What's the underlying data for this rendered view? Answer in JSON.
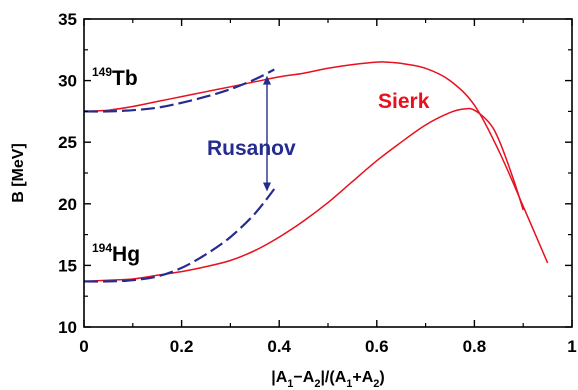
{
  "chart_data": {
    "type": "line",
    "xlabel": {
      "pre": "|A",
      "s1": "1",
      "mid1": "−A",
      "s2": "2",
      "mid2": "|/(A",
      "s3": "1",
      "mid3": "+A",
      "s4": "2",
      "post": ")"
    },
    "ylabel": "B [MeV]",
    "xlim": [
      0,
      1
    ],
    "ylim": [
      10,
      35
    ],
    "xticks": [
      "0",
      "0.2",
      "0.4",
      "0.6",
      "0.8",
      "1"
    ],
    "xtick_values": [
      0,
      0.2,
      0.4,
      0.6,
      0.8,
      1.0
    ],
    "yticks": [
      "10",
      "15",
      "20",
      "25",
      "30",
      "35"
    ],
    "ytick_values": [
      10,
      15,
      20,
      25,
      30,
      35
    ],
    "grid": false,
    "annotations": {
      "tb": {
        "mass": "149",
        "symbol": "Tb"
      },
      "hg": {
        "mass": "194",
        "symbol": "Hg"
      },
      "sierk": "Sierk",
      "rusanov": "Rusanov"
    },
    "colors": {
      "sierk": "#e8101e",
      "rusanov": "#262c8f",
      "axis": "#000000"
    },
    "series": [
      {
        "name": "Sierk",
        "nucleus": "149Tb",
        "style": "solid",
        "color": "#e8101e",
        "x": [
          0,
          0.05,
          0.1,
          0.15,
          0.2,
          0.25,
          0.3,
          0.35,
          0.4,
          0.45,
          0.5,
          0.55,
          0.6,
          0.62,
          0.65,
          0.7,
          0.75,
          0.8,
          0.85,
          0.9,
          0.95
        ],
        "y": [
          27.5,
          27.6,
          27.9,
          28.3,
          28.7,
          29.1,
          29.5,
          29.9,
          30.3,
          30.6,
          31.0,
          31.3,
          31.5,
          31.5,
          31.4,
          31.0,
          30.0,
          28.0,
          24.3,
          19.8,
          15.2
        ]
      },
      {
        "name": "Sierk",
        "nucleus": "194Hg",
        "style": "solid",
        "color": "#e8101e",
        "x": [
          0,
          0.05,
          0.1,
          0.15,
          0.2,
          0.25,
          0.3,
          0.35,
          0.4,
          0.45,
          0.5,
          0.55,
          0.6,
          0.65,
          0.7,
          0.75,
          0.78,
          0.8,
          0.83,
          0.85,
          0.88,
          0.9
        ],
        "y": [
          13.7,
          13.8,
          13.9,
          14.2,
          14.5,
          14.9,
          15.4,
          16.2,
          17.3,
          18.6,
          20.1,
          21.8,
          23.5,
          25.0,
          26.4,
          27.4,
          27.7,
          27.6,
          26.6,
          25.2,
          22.0,
          19.5
        ]
      },
      {
        "name": "Rusanov",
        "nucleus": "149Tb",
        "style": "dashed",
        "color": "#262c8f",
        "x": [
          0,
          0.05,
          0.1,
          0.15,
          0.2,
          0.25,
          0.3,
          0.35,
          0.39
        ],
        "y": [
          27.5,
          27.5,
          27.6,
          27.8,
          28.2,
          28.7,
          29.3,
          30.1,
          30.9
        ]
      },
      {
        "name": "Rusanov",
        "nucleus": "194Hg",
        "style": "dashed",
        "color": "#262c8f",
        "x": [
          0,
          0.05,
          0.1,
          0.15,
          0.2,
          0.25,
          0.3,
          0.35,
          0.39
        ],
        "y": [
          13.7,
          13.7,
          13.8,
          14.1,
          14.8,
          15.9,
          17.3,
          19.2,
          21.2
        ]
      }
    ],
    "arrow": {
      "x": 0.375,
      "y_from": 30.4,
      "y_to": 21.0
    }
  }
}
